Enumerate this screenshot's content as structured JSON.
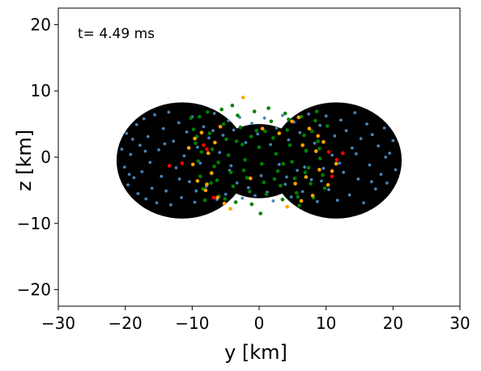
{
  "chart_data": {
    "type": "scatter",
    "title": "",
    "annotation": "t= 4.49 ms",
    "xlabel": "y [km]",
    "ylabel": "z [km]",
    "xlim": [
      -30,
      30
    ],
    "ylim": [
      -22.5,
      22.5
    ],
    "xticks": [
      -30,
      -20,
      -10,
      0,
      10,
      20,
      30
    ],
    "yticks": [
      -20,
      -10,
      0,
      10,
      20
    ],
    "xtick_labels": [
      "−30",
      "−20",
      "−10",
      "0",
      "10",
      "20",
      "30"
    ],
    "ytick_labels": [
      "−20",
      "−10",
      "0",
      "10",
      "20"
    ],
    "grid": false,
    "background_blobs": {
      "color": "#000000",
      "shape": "two overlapping discs forming a dumbbell",
      "disc_centers": [
        [
          -11.5,
          -0.5
        ],
        [
          11.5,
          -0.5
        ]
      ],
      "disc_radius_km": 9.8
    },
    "series": [
      {
        "color": "#4682b4",
        "points": [
          [
            -20.5,
            1.2
          ],
          [
            -20.1,
            -1.5
          ],
          [
            -19.8,
            3.6
          ],
          [
            -19.6,
            -4.2
          ],
          [
            -19.2,
            0.4
          ],
          [
            -18.9,
            2.7
          ],
          [
            -18.7,
            -3.1
          ],
          [
            -18.3,
            4.9
          ],
          [
            -18.1,
            -5.5
          ],
          [
            -17.8,
            1.8
          ],
          [
            -17.5,
            -2.2
          ],
          [
            -17.2,
            5.8
          ],
          [
            -16.9,
            -6.3
          ],
          [
            -16.6,
            3.1
          ],
          [
            -16.3,
            -0.8
          ],
          [
            -16.0,
            -4.7
          ],
          [
            -15.6,
            6.4
          ],
          [
            -15.3,
            -6.9
          ],
          [
            -15.0,
            1.1
          ],
          [
            -14.6,
            -2.9
          ],
          [
            -14.3,
            4.3
          ],
          [
            -13.9,
            -5.1
          ],
          [
            -13.5,
            6.8
          ],
          [
            -13.2,
            -7.2
          ],
          [
            -12.8,
            2.4
          ],
          [
            -12.4,
            -1.6
          ],
          [
            -12.0,
            5.2
          ],
          [
            -11.6,
            -6.1
          ],
          [
            -11.2,
            0.2
          ],
          [
            -10.8,
            3.8
          ],
          [
            -10.4,
            -3.7
          ],
          [
            -10.0,
            6.1
          ],
          [
            -9.6,
            -6.8
          ],
          [
            -9.2,
            1.5
          ],
          [
            -8.8,
            -0.9
          ],
          [
            -8.3,
            4.6
          ],
          [
            -7.9,
            -4.4
          ],
          [
            -7.5,
            2.9
          ],
          [
            -7.1,
            -2.5
          ],
          [
            -6.7,
            6.6
          ],
          [
            -6.3,
            -6.4
          ],
          [
            -5.9,
            0.7
          ],
          [
            -5.4,
            3.3
          ],
          [
            -5.0,
            -5.6
          ],
          [
            -4.6,
            5.5
          ],
          [
            -4.2,
            -1.3
          ],
          [
            -3.8,
            4.1
          ],
          [
            -3.3,
            -3.9
          ],
          [
            -2.9,
            6.0
          ],
          [
            -2.5,
            -6.2
          ],
          [
            -2.0,
            2.2
          ],
          [
            -1.6,
            -4.6
          ],
          [
            -1.1,
            5.1
          ],
          [
            -0.6,
            -5.8
          ],
          [
            -0.2,
            3.5
          ],
          [
            0.3,
            -2.8
          ],
          [
            0.8,
            5.9
          ],
          [
            1.2,
            -5.3
          ],
          [
            1.7,
            1.9
          ],
          [
            2.1,
            -6.6
          ],
          [
            2.6,
            4.4
          ],
          [
            3.0,
            -1.1
          ],
          [
            3.5,
            6.3
          ],
          [
            3.9,
            -4.1
          ],
          [
            4.4,
            2.6
          ],
          [
            4.8,
            -6.0
          ],
          [
            5.2,
            5.3
          ],
          [
            5.7,
            -2.0
          ],
          [
            6.1,
            3.7
          ],
          [
            6.5,
            -5.2
          ],
          [
            7.0,
            0.9
          ],
          [
            7.4,
            6.5
          ],
          [
            7.8,
            -3.4
          ],
          [
            8.3,
            2.1
          ],
          [
            8.7,
            -6.7
          ],
          [
            9.1,
            4.8
          ],
          [
            9.6,
            -1.7
          ],
          [
            10.0,
            6.2
          ],
          [
            10.4,
            -4.9
          ],
          [
            10.9,
            0.3
          ],
          [
            11.3,
            3.2
          ],
          [
            11.7,
            -6.5
          ],
          [
            12.2,
            5.6
          ],
          [
            12.6,
            -2.3
          ],
          [
            13.0,
            4.0
          ],
          [
            13.5,
            -5.7
          ],
          [
            13.9,
            1.4
          ],
          [
            14.3,
            6.7
          ],
          [
            14.8,
            -3.3
          ],
          [
            15.2,
            2.8
          ],
          [
            15.6,
            -6.9
          ],
          [
            16.1,
            5.0
          ],
          [
            16.5,
            -1.2
          ],
          [
            16.9,
            3.4
          ],
          [
            17.4,
            -4.8
          ],
          [
            17.8,
            1.7
          ],
          [
            18.2,
            -2.6
          ],
          [
            18.7,
            4.4
          ],
          [
            19.1,
            -3.9
          ],
          [
            19.5,
            0.6
          ],
          [
            20.0,
            2.5
          ],
          [
            20.4,
            -1.9
          ],
          [
            -19.4,
            -2.6
          ],
          [
            -17.0,
            0.9
          ],
          [
            -14.1,
            2.0
          ],
          [
            -11.9,
            -3.3
          ],
          [
            -9.4,
            -5.1
          ],
          [
            -6.9,
            4.0
          ],
          [
            -4.4,
            -2.0
          ],
          [
            4.1,
            -3.0
          ],
          [
            6.8,
            -1.5
          ],
          [
            9.3,
            -3.6
          ],
          [
            12.0,
            -0.9
          ],
          [
            14.5,
            0.5
          ],
          [
            16.8,
            -3.7
          ],
          [
            18.9,
            0.0
          ]
        ]
      },
      {
        "color": "#008000",
        "points": [
          [
            -10.2,
            5.9
          ],
          [
            -9.8,
            4.2
          ],
          [
            -9.5,
            2.1
          ],
          [
            -9.1,
            -0.6
          ],
          [
            -8.8,
            -2.9
          ],
          [
            -8.4,
            -4.8
          ],
          [
            -8.1,
            -6.5
          ],
          [
            -7.7,
            6.8
          ],
          [
            -7.4,
            3.6
          ],
          [
            -7.0,
            1.2
          ],
          [
            -6.7,
            -1.4
          ],
          [
            -6.3,
            -3.5
          ],
          [
            -6.0,
            -5.9
          ],
          [
            -5.6,
            7.2
          ],
          [
            -5.3,
            5.0
          ],
          [
            -4.9,
            2.7
          ],
          [
            -4.6,
            0.3
          ],
          [
            -4.2,
            -2.3
          ],
          [
            -3.9,
            -4.4
          ],
          [
            -3.5,
            -6.8
          ],
          [
            -3.2,
            6.3
          ],
          [
            -2.8,
            4.5
          ],
          [
            -2.5,
            1.9
          ],
          [
            -2.1,
            -0.4
          ],
          [
            -1.8,
            -3.1
          ],
          [
            -1.4,
            -5.2
          ],
          [
            -1.1,
            -7.1
          ],
          [
            -0.7,
            6.9
          ],
          [
            -0.4,
            4.0
          ],
          [
            0.0,
            1.5
          ],
          [
            0.4,
            -1.0
          ],
          [
            0.7,
            -3.8
          ],
          [
            1.1,
            -5.6
          ],
          [
            1.4,
            7.4
          ],
          [
            1.8,
            5.4
          ],
          [
            2.1,
            2.9
          ],
          [
            2.5,
            0.5
          ],
          [
            2.8,
            -2.1
          ],
          [
            3.2,
            -4.3
          ],
          [
            3.5,
            -6.4
          ],
          [
            3.9,
            6.6
          ],
          [
            4.2,
            4.1
          ],
          [
            4.6,
            1.8
          ],
          [
            4.9,
            -0.7
          ],
          [
            5.3,
            -3.2
          ],
          [
            5.6,
            -5.4
          ],
          [
            6.0,
            -7.3
          ],
          [
            6.3,
            6.1
          ],
          [
            6.7,
            3.3
          ],
          [
            7.0,
            1.0
          ],
          [
            7.4,
            -1.6
          ],
          [
            7.7,
            -4.0
          ],
          [
            8.1,
            -6.1
          ],
          [
            8.4,
            5.5
          ],
          [
            8.8,
            2.4
          ],
          [
            9.1,
            -0.2
          ],
          [
            9.5,
            -2.7
          ],
          [
            9.8,
            -4.7
          ],
          [
            10.2,
            4.7
          ],
          [
            -9.3,
            3.1
          ],
          [
            -8.6,
            0.8
          ],
          [
            -7.2,
            -3.9
          ],
          [
            -6.1,
            -0.8
          ],
          [
            -5.1,
            -6.3
          ],
          [
            -3.4,
            2.4
          ],
          [
            -2.3,
            -2.0
          ],
          [
            -1.2,
            3.1
          ],
          [
            0.9,
            3.9
          ],
          [
            2.3,
            -3.3
          ],
          [
            3.6,
            -1.0
          ],
          [
            4.4,
            5.7
          ],
          [
            5.8,
            -6.0
          ],
          [
            6.9,
            -2.3
          ],
          [
            7.9,
            3.9
          ],
          [
            9.0,
            1.3
          ],
          [
            -4.0,
            7.8
          ],
          [
            0.2,
            -8.5
          ],
          [
            -8.9,
            6.1
          ],
          [
            8.6,
            6.9
          ]
        ]
      },
      {
        "color": "#ffa500",
        "points": [
          [
            -10.5,
            1.4
          ],
          [
            -9.9,
            -1.1
          ],
          [
            -9.2,
            -3.6
          ],
          [
            -8.6,
            3.7
          ],
          [
            -8.0,
            -5.0
          ],
          [
            -7.6,
            0.6
          ],
          [
            -7.1,
            -2.4
          ],
          [
            -6.6,
            2.2
          ],
          [
            -6.2,
            -6.1
          ],
          [
            -5.8,
            4.6
          ],
          [
            -5.2,
            -7.0
          ],
          [
            -4.3,
            -7.8
          ],
          [
            -2.4,
            9.0
          ],
          [
            -1.3,
            -3.2
          ],
          [
            0.5,
            4.3
          ],
          [
            3.0,
            3.6
          ],
          [
            4.2,
            -7.5
          ],
          [
            4.9,
            5.4
          ],
          [
            5.4,
            -4.0
          ],
          [
            5.9,
            6.0
          ],
          [
            6.5,
            1.8
          ],
          [
            7.0,
            -3.0
          ],
          [
            7.5,
            4.3
          ],
          [
            8.0,
            -5.8
          ],
          [
            8.5,
            0.9
          ],
          [
            9.0,
            -1.9
          ],
          [
            9.6,
            2.3
          ],
          [
            10.3,
            -4.2
          ],
          [
            10.9,
            -2.1
          ],
          [
            11.5,
            -1.0
          ],
          [
            -9.6,
            2.8
          ],
          [
            -7.8,
            -4.1
          ],
          [
            6.3,
            -6.6
          ],
          [
            8.8,
            3.2
          ]
        ]
      },
      {
        "color": "#ff0000",
        "points": [
          [
            -13.4,
            -1.3
          ],
          [
            -11.5,
            -0.9
          ],
          [
            -8.3,
            1.8
          ],
          [
            -7.8,
            1.2
          ],
          [
            -6.8,
            -6.1
          ],
          [
            10.4,
            0.8
          ],
          [
            11.6,
            -0.4
          ],
          [
            12.5,
            0.6
          ],
          [
            10.9,
            -2.9
          ]
        ]
      }
    ]
  }
}
